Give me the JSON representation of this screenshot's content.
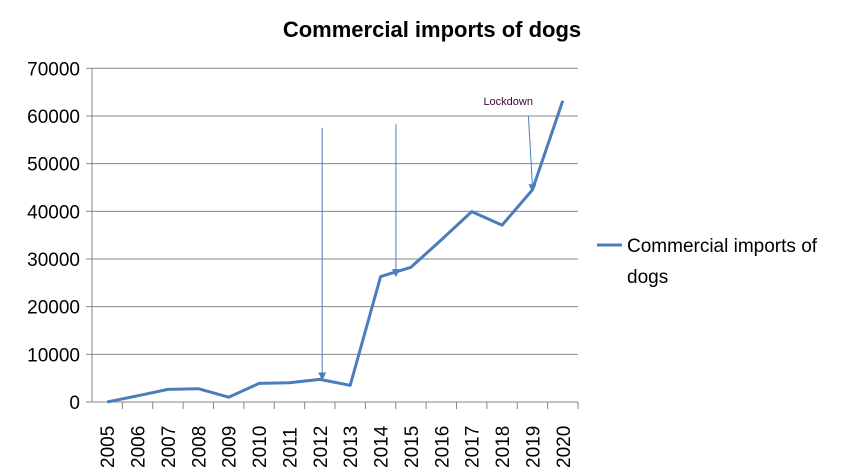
{
  "chart_data": {
    "type": "line",
    "title": "Commercial imports of dogs",
    "xlabel": "",
    "ylabel": "",
    "categories": [
      "2005",
      "2006",
      "2007",
      "2008",
      "2009",
      "2010",
      "2011",
      "2012",
      "2013",
      "2014",
      "2015",
      "2016",
      "2017",
      "2018",
      "2019",
      "2020"
    ],
    "series": [
      {
        "name": "Commercial imports of dogs",
        "color": "#4a7ebb",
        "values": [
          0,
          1300,
          2650,
          2800,
          1000,
          3900,
          4050,
          4750,
          3500,
          26300,
          28250,
          34000,
          39950,
          37100,
          44500,
          63200
        ]
      }
    ],
    "ylim": [
      0,
      70000
    ],
    "yticks": [
      0,
      10000,
      20000,
      30000,
      40000,
      50000,
      60000,
      70000
    ],
    "grid": true,
    "legend": {
      "position": "right",
      "lines": [
        "Commercial imports of",
        "dogs"
      ]
    },
    "annotations": [
      {
        "type": "arrow",
        "x": "2013",
        "from_value": 57500,
        "to_value": 4500,
        "text": ""
      },
      {
        "type": "arrow",
        "x": "2015",
        "from_value": 58300,
        "to_value": 26200,
        "text": ""
      },
      {
        "type": "arrow",
        "x": "2019",
        "from_value": 60000,
        "to_value": 44000,
        "text": "Lockdown"
      }
    ]
  }
}
